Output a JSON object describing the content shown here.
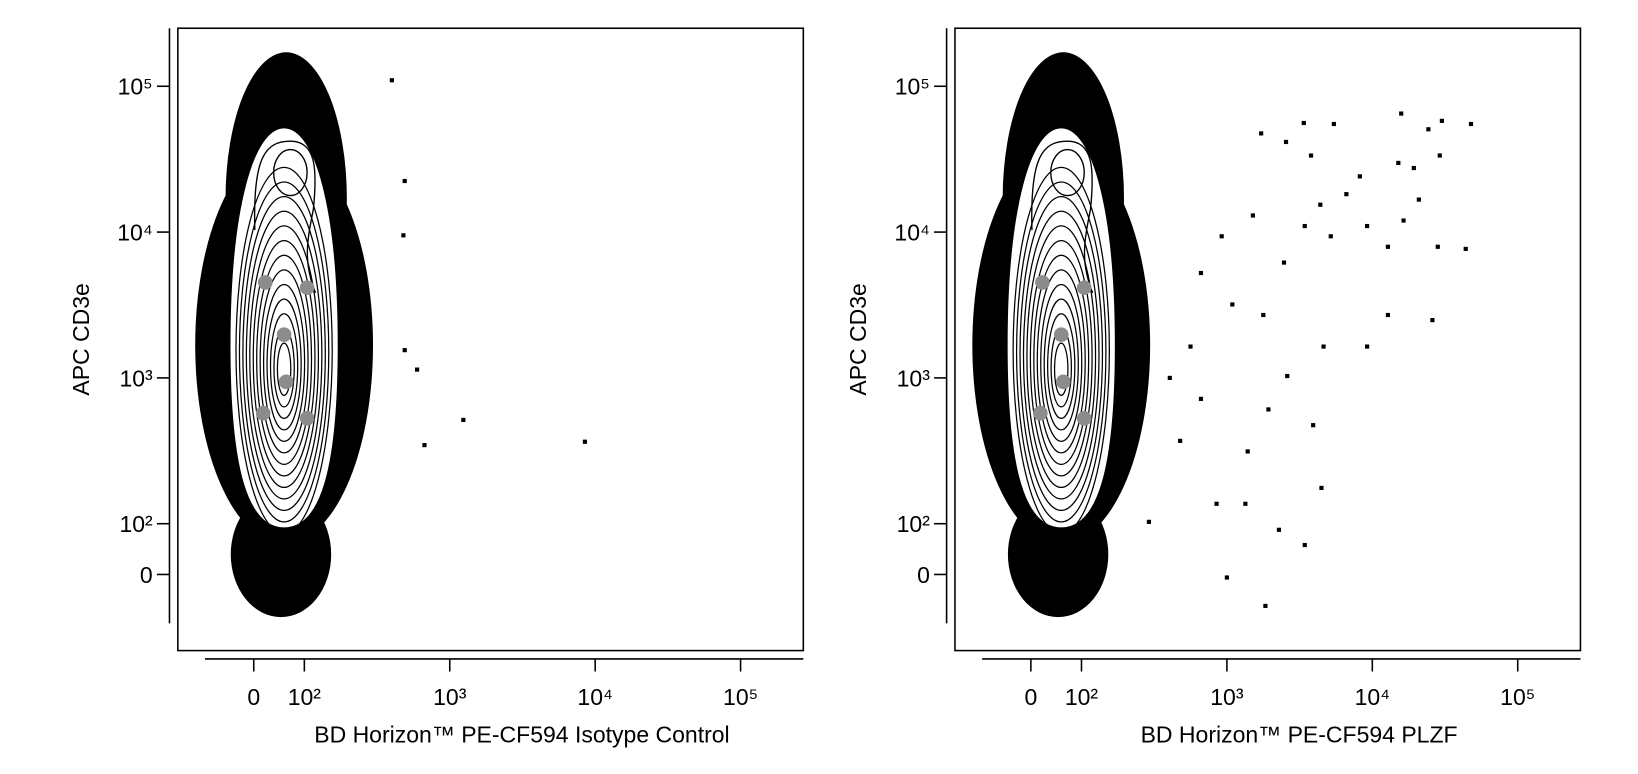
{
  "chart_data": [
    {
      "type": "scatter",
      "x_label": "BD Horizon™ PE-CF594 Isotype Control",
      "y_label": "APC CD3e",
      "xlim": [
        -150,
        270000
      ],
      "ylim": [
        -150,
        250000
      ],
      "xticks": [
        0,
        {
          "value": 100,
          "label": "10²"
        },
        {
          "value": 1000,
          "label": "10³"
        },
        {
          "value": 10000,
          "label": "10⁴"
        },
        {
          "value": 100000,
          "label": "10⁵"
        }
      ],
      "yticks": [
        0,
        {
          "value": 100,
          "label": "10²"
        },
        {
          "value": 1000,
          "label": "10³"
        },
        {
          "value": 10000,
          "label": "10⁴"
        },
        {
          "value": 100000,
          "label": "10⁵"
        }
      ],
      "color": "#000000",
      "x": [
        1240,
        8500,
        670,
        596,
        490,
        480,
        490,
        400
      ],
      "values": [
        515,
        365,
        346,
        1140,
        1550,
        9500,
        22400,
        110000
      ]
    },
    {
      "type": "scatter",
      "x_label": "BD Horizon™ PE-CF594 PLZF",
      "y_label": "APC CD3e",
      "xlim": [
        -150,
        270000
      ],
      "ylim": [
        -150,
        250000
      ],
      "xticks": [
        0,
        {
          "value": 100,
          "label": "10²"
        },
        {
          "value": 1000,
          "label": "10³"
        },
        {
          "value": 10000,
          "label": "10⁴"
        },
        {
          "value": 100000,
          "label": "10⁵"
        }
      ],
      "yticks": [
        0,
        {
          "value": 100,
          "label": "10²"
        },
        {
          "value": 1000,
          "label": "10³"
        },
        {
          "value": 10000,
          "label": "10⁴"
        },
        {
          "value": 100000,
          "label": "10⁵"
        }
      ],
      "color": "#000000",
      "x": [
        15800,
        30100,
        24300,
        29100,
        47700,
        5440,
        3380,
        1720,
        2550,
        3790,
        8210,
        15100,
        19300,
        20900,
        16400,
        6630,
        4390,
        3430,
        5180,
        9210,
        12800,
        28200,
        43900,
        2470,
        1510,
        921,
        663,
        1090,
        1780,
        12800,
        25900,
        9210,
        4620,
        2600,
        1930,
        3920,
        4470,
        849,
        1340,
        2280,
        3430,
        1000,
        1840,
        291,
        477,
        663,
        562,
        405,
        1390
      ],
      "values": [
        65000,
        57900,
        50700,
        33500,
        55100,
        55100,
        56000,
        47500,
        41500,
        33500,
        24100,
        29800,
        27500,
        16700,
        12000,
        18200,
        15400,
        11000,
        9360,
        11000,
        7930,
        7930,
        7670,
        6180,
        13000,
        9360,
        5240,
        3190,
        2700,
        2700,
        2490,
        1640,
        1640,
        1030,
        608,
        474,
        176,
        137,
        137,
        88,
        58,
        -6,
        -62,
        103,
        370,
        718,
        1640,
        1000,
        313
      ]
    }
  ]
}
